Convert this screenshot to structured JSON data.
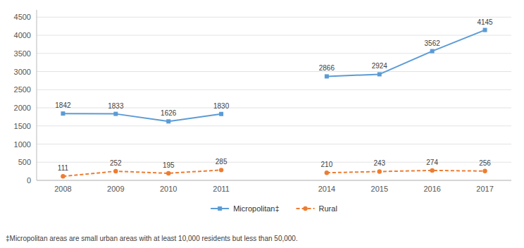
{
  "chart_data": {
    "type": "line",
    "categories": [
      "2008",
      "2009",
      "2010",
      "2011",
      null,
      "2014",
      "2015",
      "2016",
      "2017"
    ],
    "series": [
      {
        "name": "Micropolitan‡",
        "color": "#5b9bd5",
        "marker": "square",
        "line_style": "solid",
        "values": [
          1842,
          1833,
          1626,
          1830,
          null,
          2866,
          2924,
          3562,
          4145
        ]
      },
      {
        "name": "Rural",
        "color": "#ed7d31",
        "marker": "circle",
        "line_style": "dashed",
        "values": [
          111,
          252,
          195,
          285,
          null,
          210,
          243,
          274,
          256
        ]
      }
    ],
    "ylim": [
      0,
      4700
    ],
    "yticks": [
      0,
      500,
      1000,
      1500,
      2000,
      2500,
      3000,
      3500,
      4000,
      4500
    ],
    "grid": true,
    "legend": "bottom",
    "data_labels": true,
    "annotations": [
      "‡Micropolitan areas are small urban areas with at least 10,000 residents but less than 50,000."
    ]
  }
}
